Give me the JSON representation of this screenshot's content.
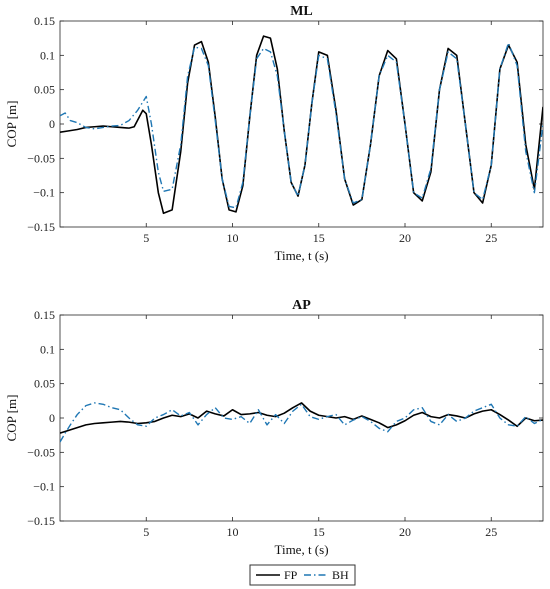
{
  "chart_data": [
    {
      "type": "line",
      "title": "ML",
      "xlabel": "Time, t (s)",
      "ylabel": "COP [m]",
      "xlim": [
        0,
        28
      ],
      "ylim": [
        -0.15,
        0.15
      ],
      "xticks": [
        5,
        10,
        15,
        20,
        25
      ],
      "yticks": [
        -0.15,
        -0.1,
        -0.05,
        0,
        0.05,
        0.1,
        0.15
      ],
      "ytick_labels": [
        "−0.15",
        "−0.1",
        "−0.05",
        "0",
        "0.05",
        "0.1",
        "0.15"
      ],
      "grid": false,
      "series": [
        {
          "name": "FP",
          "color": "#000000",
          "style": "solid",
          "x": [
            0,
            0.5,
            1,
            1.5,
            2,
            2.5,
            3,
            3.5,
            4,
            4.3,
            4.8,
            5,
            5.3,
            5.7,
            6,
            6.5,
            7,
            7.4,
            7.8,
            8.2,
            8.6,
            9,
            9.4,
            9.8,
            10.2,
            10.6,
            11,
            11.4,
            11.8,
            12.2,
            12.6,
            13,
            13.4,
            13.8,
            14.2,
            14.6,
            15,
            15.5,
            16,
            16.5,
            17,
            17.5,
            18,
            18.5,
            19,
            19.5,
            20,
            20.5,
            21,
            21.5,
            22,
            22.5,
            23,
            23.5,
            24,
            24.5,
            25,
            25.5,
            26,
            26.5,
            27,
            27.5,
            28
          ],
          "y": [
            -0.012,
            -0.01,
            -0.008,
            -0.005,
            -0.004,
            -0.003,
            -0.004,
            -0.005,
            -0.006,
            -0.004,
            0.02,
            0.015,
            -0.03,
            -0.1,
            -0.13,
            -0.125,
            -0.04,
            0.06,
            0.115,
            0.12,
            0.09,
            0.01,
            -0.08,
            -0.125,
            -0.128,
            -0.09,
            0.01,
            0.1,
            0.128,
            0.125,
            0.08,
            -0.01,
            -0.085,
            -0.105,
            -0.06,
            0.03,
            0.105,
            0.1,
            0.02,
            -0.08,
            -0.118,
            -0.11,
            -0.03,
            0.07,
            0.107,
            0.095,
            0.0,
            -0.1,
            -0.112,
            -0.07,
            0.05,
            0.11,
            0.1,
            0.0,
            -0.1,
            -0.115,
            -0.06,
            0.08,
            0.115,
            0.09,
            -0.03,
            -0.095,
            0.025
          ]
        },
        {
          "name": "BH",
          "color": "#1f77b4",
          "style": "dashdot",
          "x": [
            0,
            0.3,
            0.6,
            1,
            1.5,
            2,
            2.5,
            3,
            3.5,
            4,
            4.5,
            5,
            5.3,
            5.7,
            6,
            6.5,
            7,
            7.4,
            7.8,
            8.2,
            8.6,
            9,
            9.4,
            9.8,
            10.2,
            10.6,
            11,
            11.4,
            11.8,
            12.2,
            12.6,
            13,
            13.4,
            13.8,
            14.2,
            14.6,
            15,
            15.5,
            16,
            16.5,
            17,
            17.5,
            18,
            18.5,
            19,
            19.5,
            20,
            20.5,
            21,
            21.5,
            22,
            22.5,
            23,
            23.5,
            24,
            24.5,
            25,
            25.5,
            26,
            26.5,
            27,
            27.5,
            28
          ],
          "y": [
            0.012,
            0.016,
            0.005,
            0.002,
            -0.005,
            -0.007,
            -0.005,
            -0.003,
            -0.002,
            0.005,
            0.02,
            0.04,
            0.0,
            -0.07,
            -0.098,
            -0.095,
            -0.03,
            0.07,
            0.112,
            0.11,
            0.085,
            0.005,
            -0.08,
            -0.12,
            -0.122,
            -0.085,
            0.01,
            0.095,
            0.11,
            0.105,
            0.07,
            -0.01,
            -0.085,
            -0.105,
            -0.06,
            0.03,
            0.1,
            0.095,
            0.015,
            -0.08,
            -0.115,
            -0.11,
            -0.03,
            0.07,
            0.1,
            0.09,
            0.0,
            -0.1,
            -0.108,
            -0.065,
            0.05,
            0.105,
            0.095,
            0.0,
            -0.1,
            -0.11,
            -0.06,
            0.08,
            0.118,
            0.085,
            -0.04,
            -0.1,
            0.0
          ]
        }
      ]
    },
    {
      "type": "line",
      "title": "AP",
      "xlabel": "Time, t (s)",
      "ylabel": "COP [m]",
      "xlim": [
        0,
        28
      ],
      "ylim": [
        -0.15,
        0.15
      ],
      "xticks": [
        5,
        10,
        15,
        20,
        25
      ],
      "yticks": [
        -0.15,
        -0.1,
        -0.05,
        0,
        0.05,
        0.1,
        0.15
      ],
      "ytick_labels": [
        "−0.15",
        "−0.1",
        "−0.05",
        "0",
        "0.05",
        "0.1",
        "0.15"
      ],
      "grid": false,
      "series": [
        {
          "name": "FP",
          "color": "#000000",
          "style": "solid",
          "x": [
            0,
            0.5,
            1,
            1.5,
            2,
            2.5,
            3,
            3.5,
            4,
            4.5,
            5,
            5.5,
            6,
            6.5,
            7,
            7.5,
            8,
            8.5,
            9,
            9.5,
            10,
            10.5,
            11,
            11.5,
            12,
            12.5,
            13,
            13.5,
            14,
            14.5,
            15,
            15.5,
            16,
            16.5,
            17,
            17.5,
            18,
            18.5,
            19,
            19.5,
            20,
            20.5,
            21,
            21.5,
            22,
            22.5,
            23,
            23.5,
            24,
            24.5,
            25,
            25.5,
            26,
            26.5,
            27,
            27.5,
            28
          ],
          "y": [
            -0.022,
            -0.018,
            -0.014,
            -0.01,
            -0.008,
            -0.007,
            -0.006,
            -0.005,
            -0.006,
            -0.008,
            -0.007,
            -0.005,
            0.0,
            0.004,
            0.002,
            0.006,
            0.0,
            0.01,
            0.006,
            0.003,
            0.012,
            0.005,
            0.006,
            0.008,
            0.004,
            0.002,
            0.007,
            0.015,
            0.022,
            0.01,
            0.004,
            0.002,
            0.0,
            0.002,
            -0.002,
            0.003,
            -0.002,
            -0.007,
            -0.014,
            -0.01,
            -0.004,
            0.004,
            0.008,
            0.002,
            0.0,
            0.005,
            0.003,
            0.0,
            0.006,
            0.01,
            0.012,
            0.005,
            -0.003,
            -0.012,
            0.0,
            -0.004,
            -0.003
          ]
        },
        {
          "name": "BH",
          "color": "#1f77b4",
          "style": "dashdot",
          "x": [
            0,
            0.3,
            0.6,
            1,
            1.5,
            2,
            2.5,
            3,
            3.5,
            4,
            4.5,
            5,
            5.5,
            6,
            6.5,
            7,
            7.5,
            8,
            8.5,
            9,
            9.5,
            10,
            10.5,
            11,
            11.5,
            12,
            12.5,
            13,
            13.5,
            14,
            14.5,
            15,
            15.5,
            16,
            16.5,
            17,
            17.5,
            18,
            18.5,
            19,
            19.5,
            20,
            20.5,
            21,
            21.5,
            22,
            22.5,
            23,
            23.5,
            24,
            24.5,
            25,
            25.5,
            26,
            26.5,
            27,
            27.5,
            28
          ],
          "y": [
            -0.035,
            -0.022,
            -0.01,
            0.005,
            0.018,
            0.022,
            0.02,
            0.015,
            0.012,
            0.0,
            -0.01,
            -0.012,
            0.0,
            0.005,
            0.012,
            0.003,
            0.008,
            -0.01,
            0.005,
            0.015,
            0.0,
            -0.002,
            0.002,
            -0.008,
            0.012,
            -0.01,
            0.005,
            -0.008,
            0.01,
            0.02,
            0.002,
            -0.002,
            0.002,
            0.005,
            -0.01,
            -0.003,
            0.002,
            -0.005,
            -0.015,
            -0.02,
            -0.005,
            0.0,
            0.012,
            0.015,
            -0.005,
            -0.01,
            0.005,
            -0.005,
            0.0,
            0.01,
            0.015,
            0.02,
            0.0,
            -0.01,
            -0.012,
            0.002,
            -0.008,
            -0.002
          ]
        }
      ]
    }
  ],
  "legend": {
    "entries": [
      {
        "name": "FP",
        "color": "#000000",
        "style": "solid"
      },
      {
        "name": "BH",
        "color": "#1f77b4",
        "style": "dashdot"
      }
    ]
  }
}
